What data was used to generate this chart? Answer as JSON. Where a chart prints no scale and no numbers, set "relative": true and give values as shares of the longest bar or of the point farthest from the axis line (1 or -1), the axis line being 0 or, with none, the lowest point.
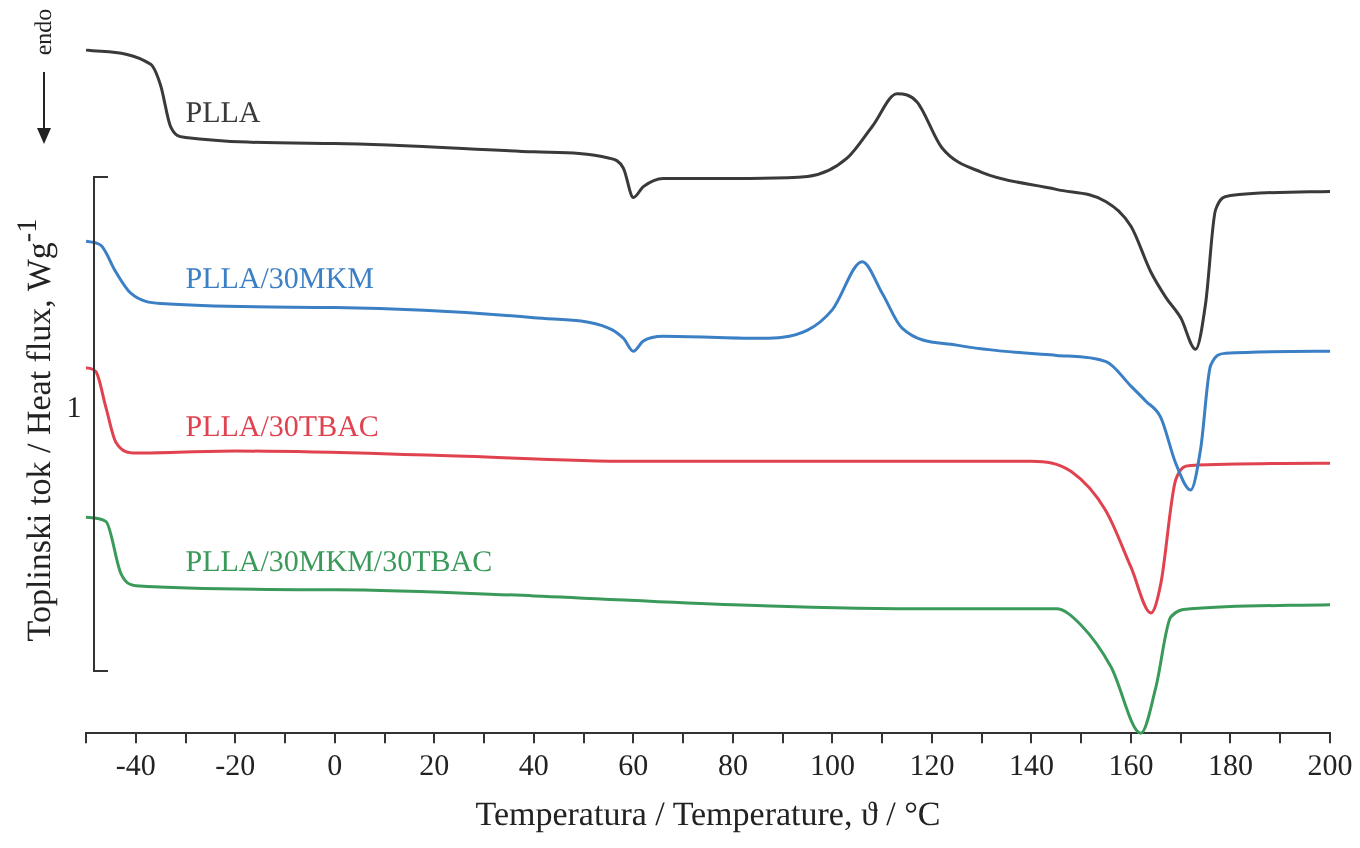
{
  "chart_data": {
    "type": "line",
    "xlabel": "Temperatura / Temperature, ϑ / °C",
    "ylabel": "Toplinski tok / Heat flux, Wg$^{-1}$",
    "annotations": [
      "endo",
      "1"
    ],
    "relative": true,
    "legend": false,
    "grid": false,
    "marker": "none",
    "line_style": "solid",
    "xlim": [
      -50,
      200
    ],
    "xticks": [
      {
        "value": -50,
        "label": null
      },
      -40,
      {
        "value": -30,
        "label": null
      },
      -20,
      {
        "value": -10,
        "label": null
      },
      0,
      {
        "value": 10,
        "label": null
      },
      20,
      {
        "value": 30,
        "label": null
      },
      40,
      {
        "value": 50,
        "label": null
      },
      60,
      {
        "value": 70,
        "label": null
      },
      80,
      {
        "value": 90,
        "label": null
      },
      100,
      {
        "value": 110,
        "label": null
      },
      120,
      {
        "value": 130,
        "label": null
      },
      140,
      {
        "value": 150,
        "label": null
      },
      160,
      {
        "value": 170,
        "label": null
      },
      180,
      {
        "value": 190,
        "label": null
      },
      200
    ],
    "series": [
      {
        "name": "PLLA",
        "color": "#3a3a3a",
        "x": [
          -50,
          -37,
          -35,
          -33,
          -30,
          0,
          40,
          55,
          58,
          60,
          62,
          66,
          80,
          95,
          103,
          108,
          113,
          117,
          122,
          130,
          145,
          155,
          160,
          164,
          167,
          170,
          173,
          175,
          177,
          180,
          200
        ],
        "values": [
          1.0,
          0.979,
          0.948,
          0.888,
          0.872,
          0.863,
          0.851,
          0.842,
          0.827,
          0.784,
          0.8,
          0.812,
          0.812,
          0.815,
          0.842,
          0.888,
          0.936,
          0.924,
          0.857,
          0.821,
          0.796,
          0.778,
          0.742,
          0.675,
          0.638,
          0.608,
          0.562,
          0.629,
          0.766,
          0.787,
          0.793
        ]
      },
      {
        "name": "PLLA/30MKM",
        "color": "#3b7fc4",
        "x": [
          -50,
          -47,
          -44,
          -41,
          -35,
          0,
          40,
          55,
          58,
          60,
          62,
          66,
          85,
          95,
          100,
          106,
          110,
          114,
          125,
          145,
          155,
          160,
          163,
          166,
          169,
          172,
          174,
          176,
          179,
          200
        ],
        "values": [
          0.72,
          0.714,
          0.675,
          0.644,
          0.629,
          0.623,
          0.608,
          0.593,
          0.578,
          0.559,
          0.574,
          0.581,
          0.578,
          0.59,
          0.62,
          0.69,
          0.644,
          0.593,
          0.568,
          0.553,
          0.544,
          0.508,
          0.486,
          0.462,
          0.395,
          0.356,
          0.416,
          0.538,
          0.556,
          0.559
        ]
      },
      {
        "name": "PLLA/30TBAC",
        "color": "#e0434f",
        "x": [
          -50,
          -48,
          -46,
          -44,
          -40,
          -20,
          20,
          60,
          100,
          140,
          148,
          155,
          160,
          164,
          166,
          169,
          172,
          200
        ],
        "values": [
          0.535,
          0.529,
          0.477,
          0.426,
          0.41,
          0.413,
          0.407,
          0.398,
          0.398,
          0.398,
          0.383,
          0.325,
          0.243,
          0.176,
          0.219,
          0.371,
          0.392,
          0.395
        ]
      },
      {
        "name": "PLLA/30MKM/30TBAC",
        "color": "#3a9a5a",
        "x": [
          -50,
          -46,
          -43,
          -40,
          0,
          40,
          80,
          120,
          145,
          150,
          156,
          162,
          165,
          168,
          172,
          200
        ],
        "values": [
          0.316,
          0.31,
          0.234,
          0.216,
          0.21,
          0.201,
          0.188,
          0.182,
          0.182,
          0.158,
          0.097,
          0.0,
          0.067,
          0.17,
          0.182,
          0.188
        ]
      }
    ]
  }
}
